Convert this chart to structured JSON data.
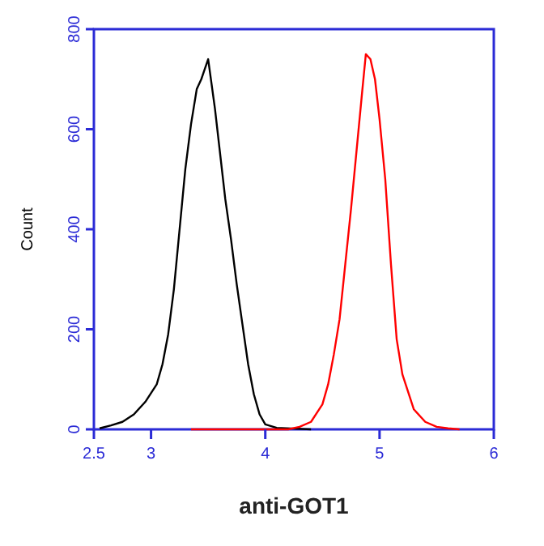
{
  "chart_data": {
    "type": "line",
    "xlabel": "anti-GOT1",
    "ylabel": "Count",
    "xlim": [
      2.5,
      6
    ],
    "xticks": [
      2.5,
      3,
      4,
      5,
      6
    ],
    "ylim": [
      0,
      800
    ],
    "yticks": [
      0,
      200,
      400,
      600,
      800
    ],
    "grid": false,
    "marker": "none",
    "line_style": "solid",
    "series": [
      {
        "color": "#000000",
        "x": [
          2.55,
          2.65,
          2.75,
          2.85,
          2.95,
          3.05,
          3.1,
          3.15,
          3.2,
          3.25,
          3.3,
          3.35,
          3.4,
          3.44,
          3.47,
          3.5,
          3.53,
          3.56,
          3.6,
          3.65,
          3.7,
          3.75,
          3.8,
          3.85,
          3.9,
          3.95,
          4.0,
          4.1,
          4.4
        ],
        "values": [
          2,
          8,
          15,
          30,
          55,
          90,
          130,
          190,
          280,
          400,
          520,
          610,
          680,
          700,
          720,
          740,
          690,
          640,
          560,
          460,
          380,
          290,
          210,
          130,
          70,
          30,
          10,
          3,
          0
        ]
      },
      {
        "color": "#ff0000",
        "x": [
          3.35,
          4.2,
          4.3,
          4.4,
          4.5,
          4.55,
          4.6,
          4.65,
          4.7,
          4.75,
          4.8,
          4.85,
          4.88,
          4.92,
          4.96,
          5.0,
          5.05,
          5.1,
          5.15,
          5.2,
          5.3,
          5.4,
          5.5,
          5.6,
          5.7
        ],
        "values": [
          0,
          0,
          5,
          15,
          50,
          90,
          150,
          220,
          330,
          440,
          560,
          680,
          750,
          740,
          700,
          620,
          500,
          330,
          180,
          110,
          40,
          15,
          5,
          2,
          0
        ]
      }
    ]
  }
}
